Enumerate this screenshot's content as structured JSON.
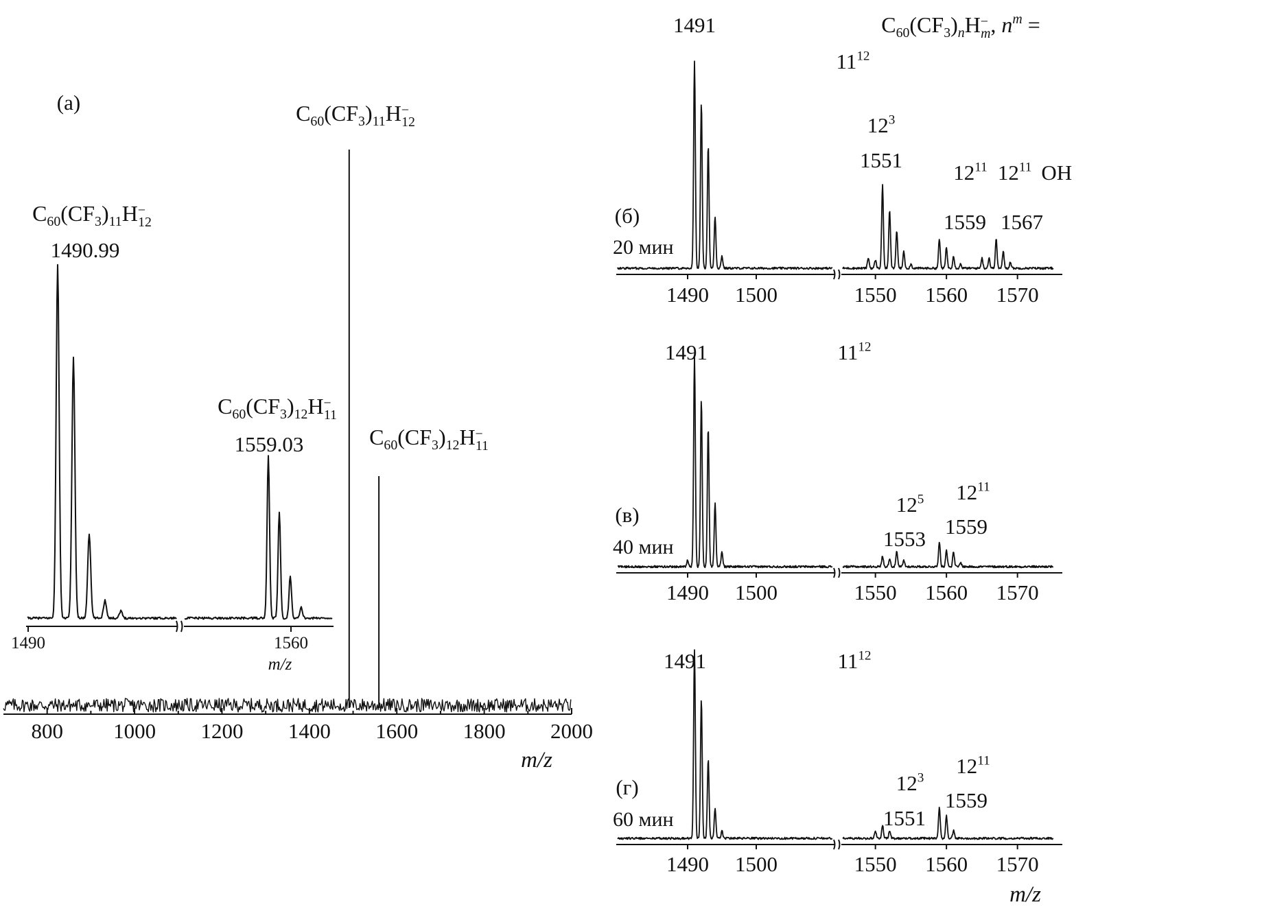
{
  "chart_data": [
    {
      "id": "main",
      "type": "line",
      "panel_label": "(a)",
      "xlabel": "m/z",
      "xlim": [
        700,
        2000
      ],
      "x_ticks": [
        800,
        1000,
        1200,
        1400,
        1600,
        1800,
        2000
      ],
      "peaks": [
        {
          "x": 1491,
          "height": 0.97
        },
        {
          "x": 1559,
          "height": 0.4
        }
      ],
      "annotations": [
        {
          "formula": {
            "base": "C",
            "sub1": "60",
            "mid": "(CF",
            "sub2": "3",
            "close": ")",
            "sub3": "11",
            "h": "H",
            "hsub": "12",
            "charge": "−"
          },
          "peak_x": 1491
        },
        {
          "formula": {
            "base": "C",
            "sub1": "60",
            "mid": "(CF",
            "sub2": "3",
            "close": ")",
            "sub3": "12",
            "h": "H",
            "hsub": "11",
            "charge": "−"
          },
          "peak_x": 1559
        }
      ]
    },
    {
      "id": "inset",
      "type": "line",
      "xlabel": "m/z",
      "x_ticks": [
        1490,
        1560
      ],
      "segments": [
        [
          1488,
          1526
        ],
        [
          1545,
          1571
        ]
      ],
      "peaks": [
        {
          "x": 1491,
          "height": 1.0
        },
        {
          "x": 1492,
          "height": 0.74
        },
        {
          "x": 1493,
          "height": 0.24
        },
        {
          "x": 1494,
          "height": 0.05
        },
        {
          "x": 1495,
          "height": 0.02
        },
        {
          "x": 1559,
          "height": 0.46
        },
        {
          "x": 1560,
          "height": 0.3
        },
        {
          "x": 1561,
          "height": 0.12
        },
        {
          "x": 1562,
          "height": 0.03
        }
      ],
      "annotations": [
        {
          "formula": {
            "base": "C",
            "sub1": "60",
            "mid": "(CF",
            "sub2": "3",
            "close": ")",
            "sub3": "11",
            "h": "H",
            "hsub": "12",
            "charge": "−"
          },
          "value": "1490.99"
        },
        {
          "formula": {
            "base": "C",
            "sub1": "60",
            "mid": "(CF",
            "sub2": "3",
            "close": ")",
            "sub3": "12",
            "h": "H",
            "hsub": "11",
            "charge": "−"
          },
          "value": "1559.03"
        }
      ]
    },
    {
      "id": "b",
      "type": "line",
      "panel_label": "(б)",
      "time": "20 мин",
      "header": {
        "base": "C",
        "sub1": "60",
        "mid": "(CF",
        "sub2": "3",
        "close": ")",
        "nsub": "n",
        "h": "H",
        "msub": "m",
        "charge": "−",
        "tail": ", n",
        "msup": "m",
        "eq": " ="
      },
      "x_ticks_left": [
        1490,
        1500
      ],
      "x_ticks_right": [
        1550,
        1560,
        1570
      ],
      "segments": [
        [
          1482,
          1509
        ],
        [
          1544,
          1575
        ]
      ],
      "peaks": [
        {
          "x": 1491,
          "height": 1.0
        },
        {
          "x": 1492,
          "height": 0.8
        },
        {
          "x": 1493,
          "height": 0.59
        },
        {
          "x": 1494,
          "height": 0.25
        },
        {
          "x": 1495,
          "height": 0.06
        },
        {
          "x": 1549,
          "height": 0.05
        },
        {
          "x": 1550,
          "height": 0.04
        },
        {
          "x": 1551,
          "height": 0.4
        },
        {
          "x": 1552,
          "height": 0.28
        },
        {
          "x": 1553,
          "height": 0.18
        },
        {
          "x": 1554,
          "height": 0.08
        },
        {
          "x": 1555,
          "height": 0.02
        },
        {
          "x": 1559,
          "height": 0.14
        },
        {
          "x": 1560,
          "height": 0.1
        },
        {
          "x": 1561,
          "height": 0.06
        },
        {
          "x": 1562,
          "height": 0.02
        },
        {
          "x": 1565,
          "height": 0.05
        },
        {
          "x": 1566,
          "height": 0.05
        },
        {
          "x": 1567,
          "height": 0.14
        },
        {
          "x": 1568,
          "height": 0.08
        },
        {
          "x": 1569,
          "height": 0.03
        }
      ],
      "annotations": [
        {
          "value": "1491",
          "x": 1491
        },
        {
          "n": "11",
          "m": "12",
          "x": 1492.5
        },
        {
          "n": "12",
          "m": "3",
          "value": "1551",
          "x": 1551
        },
        {
          "n": "12",
          "m": "11",
          "value": "1559",
          "x": 1559
        },
        {
          "n": "12",
          "m": "11",
          "suffix": "OH",
          "value": "1567",
          "x": 1567
        }
      ]
    },
    {
      "id": "v",
      "type": "line",
      "panel_label": "(в)",
      "time": "40 мин",
      "x_ticks_left": [
        1490,
        1500
      ],
      "x_ticks_right": [
        1550,
        1560,
        1570
      ],
      "segments": [
        [
          1482,
          1509
        ],
        [
          1544,
          1575
        ]
      ],
      "peaks": [
        {
          "x": 1490,
          "height": 0.03
        },
        {
          "x": 1491,
          "height": 1.0
        },
        {
          "x": 1492,
          "height": 0.79
        },
        {
          "x": 1493,
          "height": 0.66
        },
        {
          "x": 1494,
          "height": 0.3
        },
        {
          "x": 1495,
          "height": 0.07
        },
        {
          "x": 1551,
          "height": 0.05
        },
        {
          "x": 1552,
          "height": 0.04
        },
        {
          "x": 1553,
          "height": 0.07
        },
        {
          "x": 1554,
          "height": 0.03
        },
        {
          "x": 1559,
          "height": 0.12
        },
        {
          "x": 1560,
          "height": 0.08
        },
        {
          "x": 1561,
          "height": 0.07
        },
        {
          "x": 1562,
          "height": 0.02
        }
      ],
      "annotations": [
        {
          "value": "1491",
          "x": 1491
        },
        {
          "n": "11",
          "m": "12",
          "x": 1492.5
        },
        {
          "n": "12",
          "m": "5",
          "value": "1553",
          "x": 1553
        },
        {
          "n": "12",
          "m": "11",
          "value": "1559",
          "x": 1559
        }
      ]
    },
    {
      "id": "g",
      "type": "line",
      "panel_label": "(г)",
      "time": "60 мин",
      "x_ticks_left": [
        1490,
        1500
      ],
      "x_ticks_right": [
        1550,
        1560,
        1570
      ],
      "xlabel": "m/z",
      "segments": [
        [
          1482,
          1509
        ],
        [
          1544,
          1575
        ]
      ],
      "peaks": [
        {
          "x": 1491,
          "height": 1.0
        },
        {
          "x": 1492,
          "height": 0.74
        },
        {
          "x": 1493,
          "height": 0.42
        },
        {
          "x": 1494,
          "height": 0.16
        },
        {
          "x": 1495,
          "height": 0.04
        },
        {
          "x": 1550,
          "height": 0.04
        },
        {
          "x": 1551,
          "height": 0.07
        },
        {
          "x": 1552,
          "height": 0.04
        },
        {
          "x": 1559,
          "height": 0.17
        },
        {
          "x": 1560,
          "height": 0.12
        },
        {
          "x": 1561,
          "height": 0.04
        }
      ],
      "annotations": [
        {
          "value": "1491",
          "x": 1491
        },
        {
          "n": "11",
          "m": "12",
          "x": 1492.5
        },
        {
          "n": "12",
          "m": "3",
          "value": "1551",
          "x": 1551
        },
        {
          "n": "12",
          "m": "11",
          "value": "1559",
          "x": 1559
        }
      ]
    }
  ]
}
